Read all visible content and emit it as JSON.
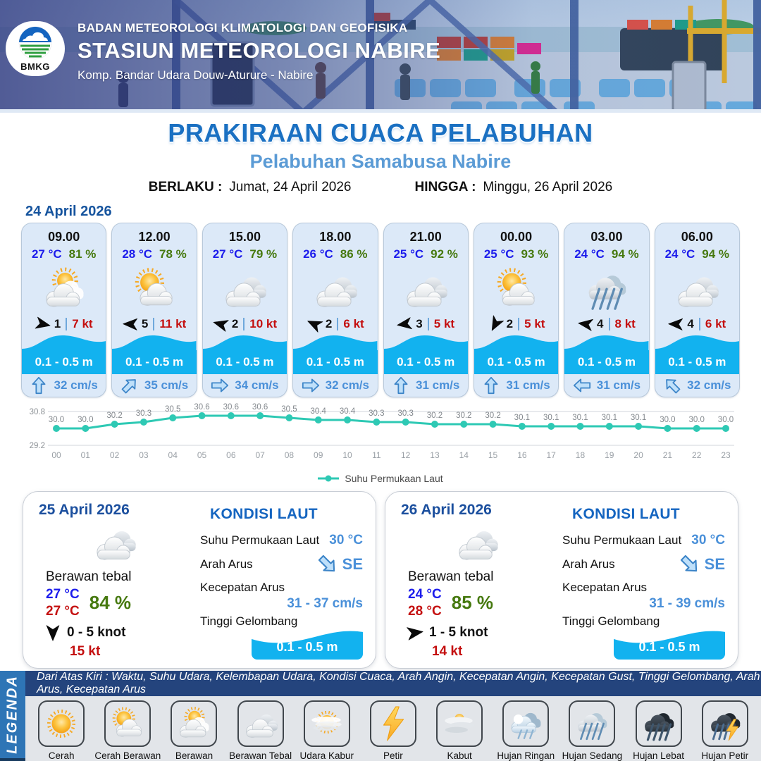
{
  "header": {
    "org": "BADAN METEOROLOGI KLIMATOLOGI DAN GEOFISIKA",
    "station": "STASIUN METEOROLOGI NABIRE",
    "address": "Komp. Bandar Udara Douw-Aturure - Nabire",
    "logo_text": "BMKG"
  },
  "title": {
    "main": "PRAKIRAAN CUACA PELABUHAN",
    "subtitle": "Pelabuhan Samabusa Nabire",
    "valid_from_label": "BERLAKU :",
    "valid_from": "Jumat, 24 April 2026",
    "valid_to_label": "HINGGA :",
    "valid_to": "Minggu, 26 April 2026"
  },
  "forecast_date": "24 April 2026",
  "cards": [
    {
      "time": "09.00",
      "temp": "27 °C",
      "humidity": "81 %",
      "icon": "berawan",
      "wind_dir_deg": 12,
      "wind_speed": "1",
      "gust": "7 kt",
      "wave": "0.1 - 0.5 m",
      "current_dir_deg": 0,
      "current": "32 cm/s"
    },
    {
      "time": "12.00",
      "temp": "28 °C",
      "humidity": "78 %",
      "icon": "cerah-berawan",
      "wind_dir_deg": 182,
      "wind_speed": "5",
      "gust": "11 kt",
      "wave": "0.1 - 0.5 m",
      "current_dir_deg": 45,
      "current": "35 cm/s"
    },
    {
      "time": "15.00",
      "temp": "27 °C",
      "humidity": "79 %",
      "icon": "berawan-tebal",
      "wind_dir_deg": 195,
      "wind_speed": "2",
      "gust": "10 kt",
      "wave": "0.1 - 0.5 m",
      "current_dir_deg": 90,
      "current": "34 cm/s"
    },
    {
      "time": "18.00",
      "temp": "26 °C",
      "humidity": "86 %",
      "icon": "berawan-tebal",
      "wind_dir_deg": 205,
      "wind_speed": "2",
      "gust": "6 kt",
      "wave": "0.1 - 0.5 m",
      "current_dir_deg": 90,
      "current": "32 cm/s"
    },
    {
      "time": "21.00",
      "temp": "25 °C",
      "humidity": "92 %",
      "icon": "berawan-tebal",
      "wind_dir_deg": 172,
      "wind_speed": "3",
      "gust": "5 kt",
      "wave": "0.1 - 0.5 m",
      "current_dir_deg": 0,
      "current": "31 cm/s"
    },
    {
      "time": "00.00",
      "temp": "25 °C",
      "humidity": "93 %",
      "icon": "cerah-berawan",
      "wind_dir_deg": 118,
      "wind_speed": "2",
      "gust": "5 kt",
      "wave": "0.1 - 0.5 m",
      "current_dir_deg": 0,
      "current": "31 cm/s"
    },
    {
      "time": "03.00",
      "temp": "24 °C",
      "humidity": "94 %",
      "icon": "hujan-sedang",
      "wind_dir_deg": 188,
      "wind_speed": "4",
      "gust": "8 kt",
      "wave": "0.1 - 0.5 m",
      "current_dir_deg": 270,
      "current": "31 cm/s"
    },
    {
      "time": "06.00",
      "temp": "24 °C",
      "humidity": "94 %",
      "icon": "berawan-tebal",
      "wind_dir_deg": 182,
      "wind_speed": "4",
      "gust": "6 kt",
      "wave": "0.1 - 0.5 m",
      "current_dir_deg": 315,
      "current": "32 cm/s"
    }
  ],
  "chart_data": {
    "type": "line",
    "title": "",
    "xlabel": "",
    "ylabel": "",
    "x": [
      "00",
      "01",
      "02",
      "03",
      "04",
      "05",
      "06",
      "07",
      "08",
      "09",
      "10",
      "11",
      "12",
      "13",
      "14",
      "15",
      "16",
      "17",
      "18",
      "19",
      "20",
      "21",
      "22",
      "23"
    ],
    "series": [
      {
        "name": "Suhu Permukaan Laut",
        "values": [
          30.0,
          30.0,
          30.2,
          30.3,
          30.5,
          30.6,
          30.6,
          30.6,
          30.5,
          30.4,
          30.4,
          30.3,
          30.3,
          30.2,
          30.2,
          30.2,
          30.1,
          30.1,
          30.1,
          30.1,
          30.1,
          30.0,
          30.0,
          30.0
        ]
      }
    ],
    "ylim": [
      29.2,
      30.8
    ],
    "yticks": [
      30.8,
      29.2
    ],
    "grid": "horizontal-top-bottom",
    "legend_position": "bottom",
    "line_color": "#2ec9b4",
    "label_color": "#8c9196"
  },
  "day_cards": [
    {
      "date": "25 April 2026",
      "icon": "berawan-tebal",
      "condition": "Berawan tebal",
      "temp_min": "27 °C",
      "temp_max": "27 °C",
      "humidity": "84 %",
      "wind_dir_deg": 90,
      "wind_range": "0 - 5 knot",
      "gust": "15 kt",
      "sea": {
        "heading": "KONDISI LAUT",
        "sst_label": "Suhu Permukaan Laut",
        "sst": "30 °C",
        "current_dir_label": "Arah Arus",
        "current_dir": "SE",
        "current_dir_deg": 135,
        "current_speed_label": "Kecepatan Arus",
        "current_speed": "31 - 37 cm/s",
        "wave_label": "Tinggi Gelombang",
        "wave": "0.1 - 0.5 m"
      }
    },
    {
      "date": "26 April 2026",
      "icon": "berawan-tebal",
      "condition": "Berawan tebal",
      "temp_min": "24 °C",
      "temp_max": "28 °C",
      "humidity": "85 %",
      "wind_dir_deg": -8,
      "wind_range": "1 - 5 knot",
      "gust": "14 kt",
      "sea": {
        "heading": "KONDISI LAUT",
        "sst_label": "Suhu Permukaan Laut",
        "sst": "30 °C",
        "current_dir_label": "Arah Arus",
        "current_dir": "SE",
        "current_dir_deg": 135,
        "current_speed_label": "Kecepatan Arus",
        "current_speed": "31 - 39 cm/s",
        "wave_label": "Tinggi Gelombang",
        "wave": "0.1 - 0.5 m"
      }
    }
  ],
  "legend": {
    "tab": "LEGENDA",
    "note": "Dari Atas Kiri : Waktu, Suhu Udara, Kelembapan Udara, Kondisi Cuaca, Arah Angin, Kecepatan Angin, Kecepatan Gust, Tinggi Gelombang, Arah Arus, Kecepatan Arus",
    "items": [
      {
        "label": "Cerah",
        "icon": "cerah"
      },
      {
        "label": "Cerah Berawan",
        "icon": "cerah-berawan"
      },
      {
        "label": "Berawan",
        "icon": "berawan"
      },
      {
        "label": "Berawan Tebal",
        "icon": "berawan-tebal"
      },
      {
        "label": "Udara Kabur",
        "icon": "udara-kabur"
      },
      {
        "label": "Petir",
        "icon": "petir"
      },
      {
        "label": "Kabut",
        "icon": "kabut"
      },
      {
        "label": "Hujan Ringan",
        "icon": "hujan-ringan"
      },
      {
        "label": "Hujan Sedang",
        "icon": "hujan-sedang"
      },
      {
        "label": "Hujan Lebat",
        "icon": "hujan-lebat"
      },
      {
        "label": "Hujan Petir",
        "icon": "hujan-petir"
      }
    ]
  },
  "colors": {
    "title_blue": "#1a70c2",
    "subtitle_blue": "#5b9bd5",
    "temp_blue": "#1c1cec",
    "humidity_green": "#46790f",
    "gust_red": "#c40f0f",
    "wave_band_blue": "#12b2ef",
    "current_blue": "#4a90d9",
    "card_bg": "#dce9f8",
    "legend_tab_blue": "#2e75b6",
    "legend_strip_navy": "#24447d",
    "chart_line_teal": "#2ec9b4"
  }
}
